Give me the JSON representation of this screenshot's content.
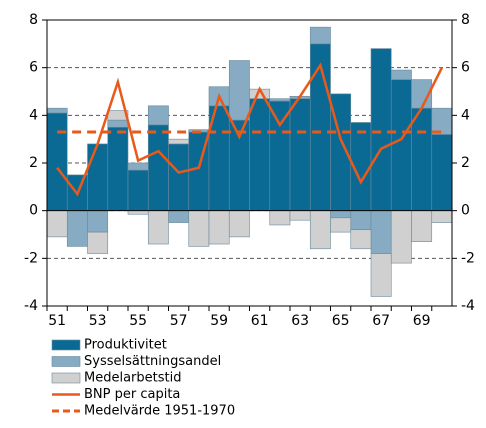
{
  "chart_data": {
    "type": "bar",
    "categories": [
      "51",
      null,
      "53",
      null,
      "55",
      null,
      "57",
      null,
      "59",
      null,
      "61",
      null,
      "63",
      null,
      "65",
      null,
      "67",
      null,
      "69",
      null
    ],
    "series": [
      {
        "name": "Produktivitet",
        "kind": "bar",
        "color": "#0b6a94",
        "values": [
          4.1,
          1.5,
          2.8,
          3.5,
          1.7,
          3.6,
          2.8,
          3.3,
          4.4,
          3.8,
          4.7,
          4.6,
          4.7,
          7.0,
          4.9,
          3.7,
          6.8,
          5.5,
          4.3,
          3.2
        ]
      },
      {
        "name": "Sysselsättningsandel",
        "kind": "bar",
        "color": "#86abc2",
        "values": [
          0.2,
          -1.5,
          -0.9,
          0.3,
          0.3,
          0.8,
          -0.5,
          0.1,
          0.8,
          2.5,
          0,
          0.1,
          0.1,
          0.7,
          -0.3,
          -0.8,
          -1.8,
          0.4,
          1.2,
          1.1
        ]
      },
      {
        "name": "Medelarbetstid",
        "kind": "bar",
        "color": "#d0d0d0",
        "values": [
          -1.1,
          0,
          -0.9,
          0.4,
          -0.15,
          -1.4,
          0.2,
          -1.5,
          -1.4,
          -1.1,
          0.4,
          -0.6,
          -0.4,
          -1.6,
          -0.6,
          -0.8,
          -1.8,
          -2.2,
          -1.3,
          -0.5
        ]
      },
      {
        "name": "BNP per capita",
        "kind": "line",
        "color": "#e8591a",
        "values": [
          1.8,
          0.7,
          2.8,
          5.4,
          2.1,
          2.5,
          1.6,
          1.8,
          4.8,
          3.1,
          5.1,
          3.6,
          4.8,
          6.1,
          3.0,
          1.2,
          2.6,
          3.0,
          4.3,
          6.0
        ]
      },
      {
        "name": "Medelvärde 1951-1970",
        "kind": "dashed",
        "color": "#e8591a",
        "values": [
          3.3,
          3.3,
          3.3,
          3.3,
          3.3,
          3.3,
          3.3,
          3.3,
          3.3,
          3.3,
          3.3,
          3.3,
          3.3,
          3.3,
          3.3,
          3.3,
          3.3,
          3.3,
          3.3,
          3.3
        ]
      }
    ],
    "ylim": [
      -4,
      8
    ],
    "yticks": [
      -4,
      -2,
      0,
      2,
      4,
      6,
      8
    ],
    "y2lim": [
      -4,
      8
    ],
    "y2ticks": [
      -4,
      -2,
      0,
      2,
      4,
      6,
      8
    ],
    "grid": true
  }
}
